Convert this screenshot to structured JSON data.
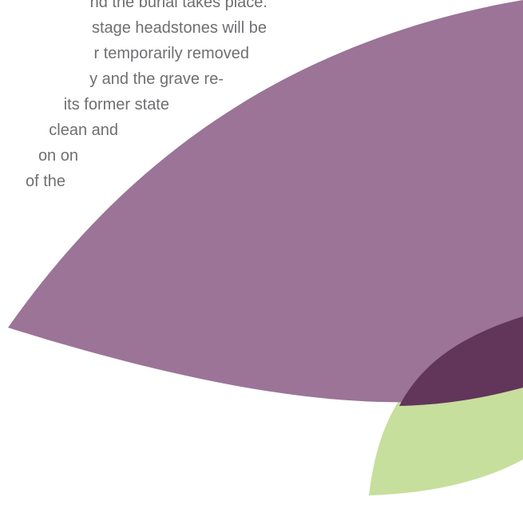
{
  "document": {
    "lines": [
      "nd the burial takes place.",
      "stage headstones will be",
      "r temporarily removed",
      "y and the grave re-",
      "its former state",
      "clean and",
      "on on",
      "of the"
    ]
  },
  "decor": {
    "leaf_purple": "#9b7497",
    "leaf_green": "#c6df9c",
    "leaf_overlap": "#62355a",
    "text_color": "#6f6f73"
  }
}
